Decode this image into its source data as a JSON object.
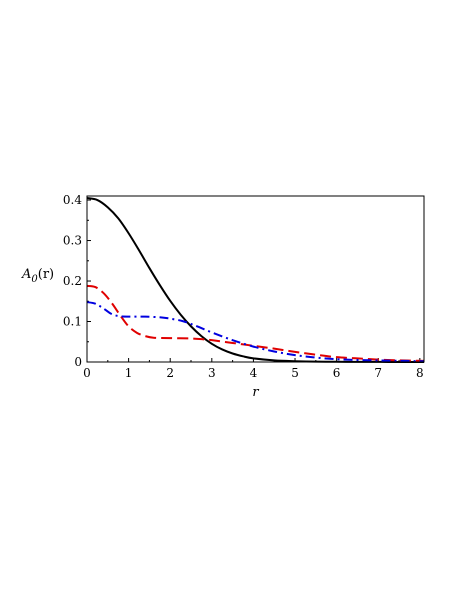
{
  "chart_data": {
    "type": "line",
    "title": "",
    "xlabel": "r",
    "ylabel": "A_0(r)",
    "ylabel_main": "A",
    "ylabel_sub": "0",
    "ylabel_arg": "(r)",
    "xlim": [
      0,
      8.1
    ],
    "ylim": [
      0,
      0.41
    ],
    "xticks": [
      0,
      1,
      2,
      3,
      4,
      5,
      6,
      7,
      8
    ],
    "yticks": [
      0,
      0.1,
      0.2,
      0.3,
      0.4
    ],
    "xtick_labels": [
      "0",
      "1",
      "2",
      "3",
      "4",
      "5",
      "6",
      "7",
      "8"
    ],
    "ytick_labels": [
      "0",
      "0.1",
      "0.2",
      "0.3",
      "0.4"
    ],
    "grid": false,
    "legend": "none",
    "series": [
      {
        "color": "#000000",
        "style": "solid",
        "x": [
          0,
          0.25,
          0.5,
          0.75,
          1,
          1.25,
          1.5,
          1.75,
          2,
          2.25,
          2.5,
          2.75,
          3,
          3.25,
          3.5,
          3.75,
          4,
          4.5,
          5,
          5.5,
          6,
          6.5,
          7,
          7.5,
          8,
          8.1
        ],
        "y": [
          0.405,
          0.4,
          0.382,
          0.355,
          0.318,
          0.276,
          0.232,
          0.19,
          0.151,
          0.117,
          0.088,
          0.064,
          0.045,
          0.031,
          0.021,
          0.014,
          0.009,
          0.004,
          0.002,
          0.001,
          0.0005,
          0.0003,
          0.0002,
          0.0001,
          0.0001,
          0.0001
        ]
      },
      {
        "color": "#e00000",
        "style": "dashed",
        "x": [
          0,
          0.2,
          0.4,
          0.6,
          0.8,
          1.0,
          1.2,
          1.4,
          1.6,
          2.0,
          2.5,
          2.8,
          3.0,
          3.5,
          4.0,
          4.5,
          5.0,
          5.5,
          6.0,
          6.5,
          7.0,
          7.5,
          8.0,
          8.1
        ],
        "y": [
          0.188,
          0.185,
          0.17,
          0.145,
          0.115,
          0.088,
          0.072,
          0.064,
          0.06,
          0.059,
          0.058,
          0.056,
          0.054,
          0.047,
          0.04,
          0.033,
          0.025,
          0.018,
          0.012,
          0.009,
          0.006,
          0.004,
          0.003,
          0.003
        ]
      },
      {
        "color": "#0000e0",
        "style": "dashdot",
        "x": [
          0,
          0.2,
          0.4,
          0.6,
          0.8,
          1.0,
          1.4,
          1.8,
          2.0,
          2.3,
          2.6,
          3.0,
          3.5,
          4.0,
          4.5,
          5.0,
          5.5,
          6.0,
          6.5,
          7.0,
          7.5,
          8.0,
          8.1
        ],
        "y": [
          0.148,
          0.144,
          0.132,
          0.118,
          0.113,
          0.112,
          0.112,
          0.11,
          0.107,
          0.101,
          0.09,
          0.073,
          0.054,
          0.038,
          0.026,
          0.017,
          0.011,
          0.007,
          0.005,
          0.004,
          0.003,
          0.002,
          0.002
        ]
      }
    ]
  }
}
